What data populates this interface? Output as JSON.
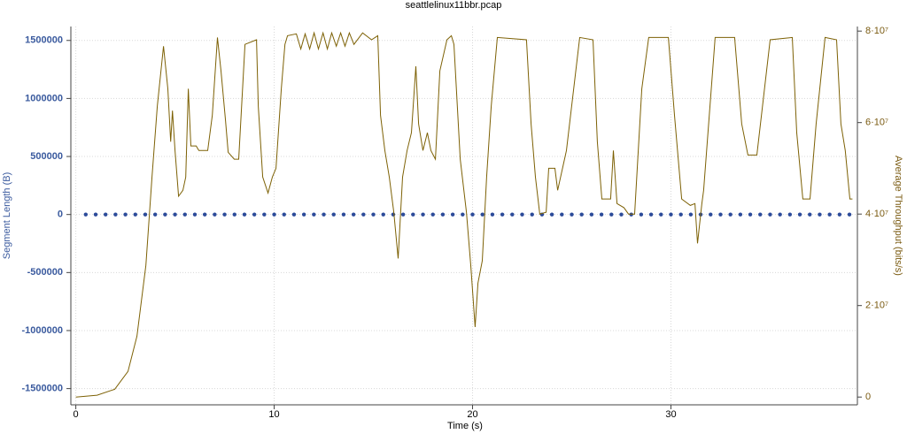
{
  "chart_data": {
    "type": "line",
    "title": "seattlelinux11bbr.pcap",
    "x_label": "Time (s)",
    "y_label": "Segment Length (B)",
    "y2_label": "Average Throughput (bits/s)",
    "xlim": [
      -0.25,
      39.4
    ],
    "xticks": [
      0,
      10,
      20,
      30
    ],
    "ylim": [
      -1640000,
      1620000
    ],
    "yticks": [
      -1500000,
      -1000000,
      -500000,
      0,
      500000,
      1000000,
      1500000
    ],
    "y2lim": [
      -1700000,
      81000000
    ],
    "y2ticks": [
      0,
      {
        "value": 20000000.0,
        "label": "2·10⁷"
      },
      {
        "value": 40000000.0,
        "label": "4·10⁷"
      },
      {
        "value": 60000000.0,
        "label": "6·10⁷"
      },
      {
        "value": 80000000.0,
        "label": "8·10⁷"
      }
    ],
    "grid": true,
    "y_color": "#3a5a9e",
    "y2_color": "#7a5a10",
    "series": [
      {
        "color": "#2c4b9a",
        "mode": "markers",
        "x": [
          0.5,
          1,
          1.5,
          2,
          2.5,
          3,
          3.5,
          4,
          4.5,
          5,
          5.5,
          6,
          6.5,
          7,
          7.5,
          8,
          8.5,
          9,
          9.5,
          10,
          10.5,
          11,
          11.5,
          12,
          12.5,
          13,
          13.5,
          14,
          14.5,
          15,
          15.5,
          16,
          16.5,
          17,
          17.5,
          18,
          18.5,
          19,
          19.5,
          20,
          20.5,
          21,
          21.5,
          22,
          22.5,
          23,
          23.5,
          24,
          24.5,
          25,
          25.5,
          26,
          26.5,
          27,
          27.5,
          28,
          28.5,
          29,
          29.5,
          30,
          30.5,
          31,
          31.5,
          32,
          32.5,
          33,
          33.5,
          34,
          34.5,
          35,
          35.5,
          36,
          36.5,
          37,
          37.5,
          38,
          38.5,
          39
        ],
        "values": [
          0,
          0,
          0,
          0,
          0,
          0,
          0,
          0,
          0,
          0,
          0,
          0,
          0,
          0,
          0,
          0,
          0,
          0,
          0,
          0,
          0,
          0,
          0,
          0,
          0,
          0,
          0,
          0,
          0,
          0,
          0,
          0,
          0,
          0,
          0,
          0,
          0,
          0,
          0,
          0,
          0,
          0,
          0,
          0,
          0,
          0,
          0,
          0,
          0,
          0,
          0,
          0,
          0,
          0,
          0,
          0,
          0,
          0,
          0,
          0,
          0,
          0,
          0,
          0,
          0,
          0,
          0,
          0,
          0,
          0,
          0,
          0,
          0,
          0,
          0,
          0,
          0,
          0
        ]
      },
      {
        "color": "#7d6105",
        "axis": "y2",
        "mode": "line",
        "x": [
          0,
          1.07,
          1.96,
          2.63,
          3.08,
          3.53,
          3.84,
          4.11,
          4.42,
          4.64,
          4.78,
          4.87,
          5.0,
          5.18,
          5.4,
          5.54,
          5.67,
          5.8,
          6.07,
          6.2,
          6.65,
          6.88,
          7.14,
          7.32,
          7.54,
          7.68,
          7.99,
          8.21,
          8.53,
          9.11,
          9.2,
          9.42,
          9.69,
          9.91,
          10.09,
          10.36,
          10.54,
          10.67,
          11.12,
          11.34,
          11.56,
          11.79,
          12.01,
          12.23,
          12.46,
          12.68,
          12.9,
          13.13,
          13.35,
          13.57,
          13.79,
          14.02,
          14.46,
          14.91,
          15.22,
          15.36,
          15.58,
          15.8,
          16.03,
          16.25,
          16.47,
          16.7,
          16.92,
          17.14,
          17.28,
          17.5,
          17.72,
          17.9,
          18.13,
          18.35,
          18.71,
          18.93,
          19.06,
          19.38,
          19.69,
          19.91,
          20.13,
          20.27,
          20.49,
          20.71,
          20.94,
          21.25,
          22.72,
          22.95,
          23.17,
          23.39,
          23.71,
          23.84,
          24.15,
          24.29,
          24.73,
          25.4,
          26.07,
          26.29,
          26.52,
          26.96,
          27.1,
          27.28,
          27.63,
          27.86,
          28.17,
          28.53,
          28.88,
          29.87,
          30.18,
          30.54,
          30.98,
          31.21,
          31.34,
          31.56,
          31.65,
          32.23,
          33.21,
          33.57,
          33.88,
          34.33,
          35.0,
          36.12,
          36.34,
          36.65,
          37.01,
          37.32,
          37.77,
          38.35,
          38.57,
          38.79,
          39.02,
          39.15
        ],
        "values": [
          0,
          400000.0,
          1700000.0,
          5600000.0,
          13300000.0,
          28800000.0,
          48100000.0,
          63600000.0,
          76700000.0,
          67400000.0,
          55800000.0,
          62600000.0,
          53900000.0,
          43900000.0,
          45200000.0,
          48100000.0,
          67400000.0,
          54900000.0,
          54900000.0,
          53900000.0,
          53900000.0,
          61600000.0,
          78600000.0,
          71300000.0,
          60700000.0,
          53500000.0,
          52000000.0,
          52000000.0,
          77100000.0,
          78100000.0,
          63600000.0,
          48100000.0,
          44600000.0,
          48100000.0,
          50000000.0,
          67400000.0,
          77100000.0,
          79000000.0,
          79400000.0,
          76100000.0,
          79400000.0,
          76100000.0,
          79600000.0,
          76100000.0,
          79600000.0,
          76100000.0,
          79600000.0,
          76700000.0,
          79600000.0,
          76700000.0,
          79600000.0,
          77100000.0,
          79600000.0,
          78100000.0,
          79000000.0,
          61600000.0,
          53900000.0,
          48100000.0,
          40400000.0,
          30300000.0,
          48100000.0,
          53900000.0,
          57800000.0,
          72300000.0,
          59700000.0,
          53900000.0,
          57800000.0,
          53900000.0,
          52000000.0,
          71300000.0,
          78100000.0,
          79000000.0,
          77100000.0,
          52000000.0,
          40400000.0,
          28800000.0,
          15300000.0,
          24900000.0,
          29800000.0,
          48100000.0,
          63600000.0,
          78600000.0,
          78100000.0,
          59700000.0,
          48100000.0,
          40000000.0,
          40400000.0,
          50000000.0,
          50000000.0,
          45200000.0,
          53900000.0,
          78600000.0,
          78100000.0,
          55800000.0,
          43300000.0,
          43300000.0,
          53900000.0,
          42300000.0,
          41400000.0,
          40000000.0,
          40000000.0,
          67400000.0,
          78600000.0,
          78600000.0,
          61600000.0,
          43300000.0,
          41900000.0,
          42300000.0,
          33600000.0,
          42300000.0,
          45200000.0,
          78600000.0,
          78600000.0,
          59700000.0,
          52900000.0,
          52900000.0,
          78100000.0,
          78600000.0,
          57800000.0,
          43300000.0,
          43300000.0,
          59700000.0,
          78600000.0,
          78100000.0,
          59700000.0,
          53900000.0,
          43300000.0,
          43300000.0
        ]
      }
    ]
  }
}
